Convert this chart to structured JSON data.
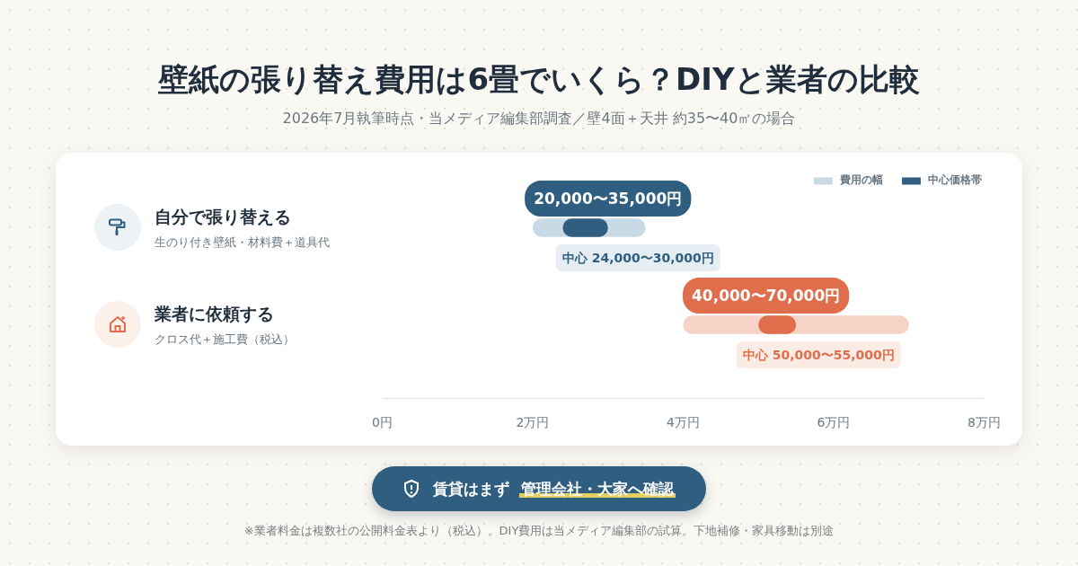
{
  "chart_data": {
    "type": "bar",
    "orientation": "horizontal",
    "title": "壁紙の張り替え費用は6畳でいくら？DIYと業者の比較",
    "subtitle": "2026年7月執筆時点・当メディア編集部調査／壁4面＋天井 約35〜40㎡の場合",
    "categories": [
      "自分で張り替える",
      "業者に依頼する"
    ],
    "series": [
      {
        "name": "費用の幅",
        "colors": [
          "#c8dae6",
          "#f6d3c6"
        ],
        "base": [
          2,
          4
        ],
        "values": [
          1.5,
          3
        ]
      },
      {
        "name": "中心価格帯",
        "colors": [
          "#2f5e80",
          "#e06e4d"
        ],
        "base": [
          2.4,
          5
        ],
        "values": [
          0.6,
          0.5
        ]
      }
    ],
    "xlim": [
      0,
      8
    ],
    "xticks": [
      {
        "value": 0,
        "label": "0円"
      },
      {
        "value": 2,
        "label": "2万円"
      },
      {
        "value": 4,
        "label": "4万円"
      },
      {
        "value": 6,
        "label": "6万円"
      },
      {
        "value": 8,
        "label": "8万円"
      }
    ],
    "grid": false,
    "legend": "top right",
    "annotations": [
      "生のり付き壁紙・材料費＋道具代",
      "クロス代＋施工費（税込）",
      {
        "text": "20,000〜35,000円",
        "x": 3.0,
        "y": "自分で張り替える"
      },
      {
        "text": "中心 24,000〜30,000円",
        "x": 3.4,
        "y": "自分で張り替える"
      },
      {
        "text": "40,000〜70,000円",
        "x": 5.1,
        "y": "業者に依頼する"
      },
      {
        "text": "中心 50,000〜55,000円",
        "x": 5.8,
        "y": "業者に依頼する"
      },
      "賃貸はまず 管理会社・大家へ確認",
      "※業者料金は複数社の公開料金表より（税込）。DIY費用は当メディア編集部の試算。下地補修・家具移動は別途"
    ]
  }
}
